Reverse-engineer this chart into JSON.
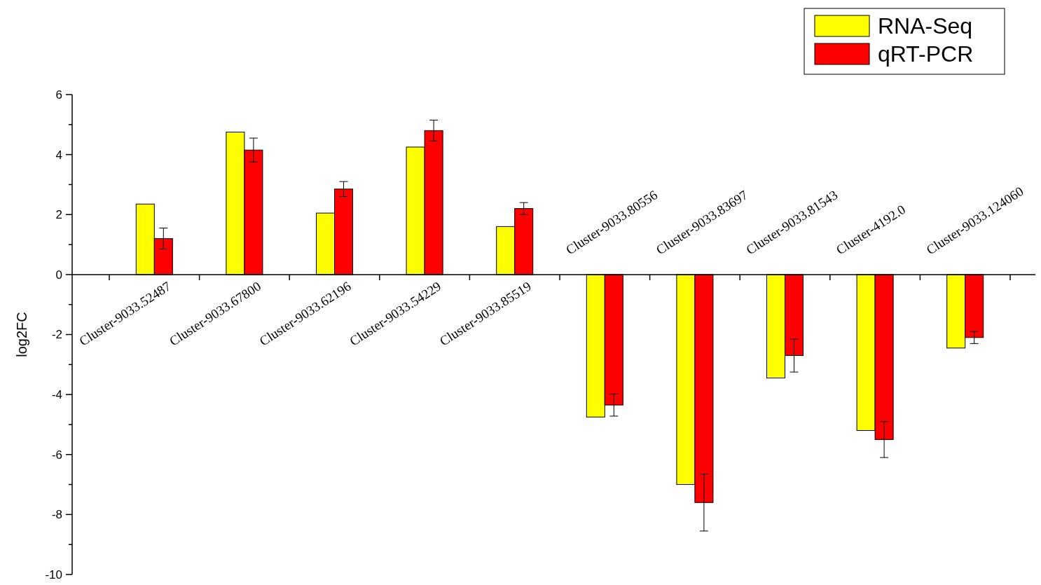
{
  "chart_data": {
    "type": "bar",
    "ylabel": "log2FC",
    "categories": [
      "Cluster-9033.52487",
      "Cluster-9033.67800",
      "Cluster-9033.62196",
      "Cluster-9033.54229",
      "Cluster-9033.85519",
      "Cluster-9033.80556",
      "Cluster-9033.83697",
      "Cluster-9033.81543",
      "Cluster-4192.0",
      "Cluster-9033.124060"
    ],
    "series": [
      {
        "name": "RNA-Seq",
        "color": "#ffff00",
        "values": [
          2.35,
          4.75,
          2.05,
          4.25,
          1.6,
          -4.75,
          -7.0,
          -3.45,
          -5.2,
          -2.45
        ]
      },
      {
        "name": "qRT-PCR",
        "color": "#ff0000",
        "values": [
          1.2,
          4.15,
          2.85,
          4.8,
          2.2,
          -4.35,
          -7.6,
          -2.7,
          -5.5,
          -2.1
        ],
        "errors": [
          0.35,
          0.4,
          0.25,
          0.35,
          0.2,
          0.37,
          0.95,
          0.55,
          0.6,
          0.2
        ]
      }
    ],
    "ylim": [
      -10,
      6
    ],
    "yticks": [
      -10,
      {
        "value": -9,
        "label": null
      },
      -8,
      {
        "value": -7,
        "label": null
      },
      -6,
      {
        "value": -5,
        "label": null
      },
      -4,
      {
        "value": -3,
        "label": null
      },
      -2,
      {
        "value": -1,
        "label": null
      },
      0,
      {
        "value": 1,
        "label": null
      },
      2,
      {
        "value": 3,
        "label": null
      },
      4,
      {
        "value": 5,
        "label": null
      },
      6
    ],
    "legend": "top right",
    "grid": false
  }
}
